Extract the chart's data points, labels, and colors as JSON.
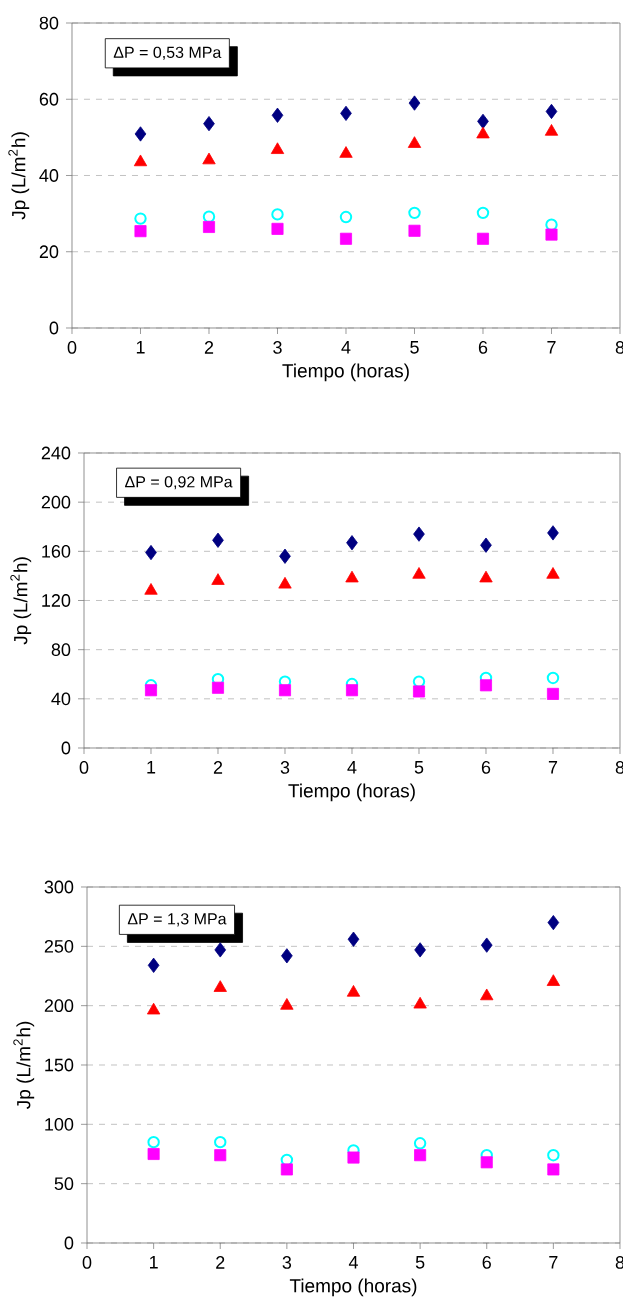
{
  "chart_data": [
    {
      "type": "scatter",
      "xlabel": "Tiempo (horas)",
      "ylabel": "Jp (L/m$^{2}$h)",
      "annotations": [
        "ΔP = 0,53 MPa"
      ],
      "x": [
        1,
        2,
        3,
        4,
        5,
        6,
        7
      ],
      "xlim": [
        0,
        8
      ],
      "xticks": [
        0,
        1,
        2,
        3,
        4,
        5,
        6,
        7,
        8
      ],
      "ylim": [
        0,
        80
      ],
      "yticks": [
        0,
        20,
        40,
        60,
        80
      ],
      "grid": "y",
      "line_style": "dashed",
      "series": [
        {
          "color": "#000080",
          "marker": "diamond",
          "values": [
            50.9,
            53.6,
            55.8,
            56.3,
            59.0,
            54.2,
            56.8
          ]
        },
        {
          "color": "#ff0000",
          "marker": "triangle",
          "values": [
            43.5,
            44.0,
            46.7,
            45.7,
            48.3,
            50.8,
            51.5
          ]
        },
        {
          "color": "#00ffff",
          "marker": "circle",
          "values": [
            28.7,
            29.2,
            29.8,
            29.1,
            30.2,
            30.2,
            27.1
          ]
        },
        {
          "color": "#ff00ff",
          "marker": "square",
          "values": [
            25.4,
            26.5,
            26.0,
            23.4,
            25.5,
            23.4,
            24.5
          ]
        }
      ]
    },
    {
      "type": "scatter",
      "xlabel": "Tiempo (horas)",
      "ylabel": "Jp (L/m$^{2}$h)",
      "annotations": [
        "ΔP = 0,92 MPa"
      ],
      "x": [
        1,
        2,
        3,
        4,
        5,
        6,
        7
      ],
      "xlim": [
        0,
        8
      ],
      "xticks": [
        0,
        1,
        2,
        3,
        4,
        5,
        6,
        7,
        8
      ],
      "ylim": [
        0,
        240
      ],
      "yticks": [
        0,
        40,
        80,
        120,
        160,
        200,
        240
      ],
      "grid": "y",
      "line_style": "dashed",
      "series": [
        {
          "color": "#000080",
          "marker": "diamond",
          "values": [
            159,
            169,
            156,
            167,
            174,
            165,
            175
          ]
        },
        {
          "color": "#ff0000",
          "marker": "triangle",
          "values": [
            128,
            136,
            133,
            138,
            141,
            138,
            141
          ]
        },
        {
          "color": "#00ffff",
          "marker": "circle",
          "values": [
            51,
            56,
            54,
            52,
            54,
            57,
            57
          ]
        },
        {
          "color": "#ff00ff",
          "marker": "square",
          "values": [
            47,
            49,
            47,
            47,
            46,
            51,
            44
          ]
        }
      ]
    },
    {
      "type": "scatter",
      "xlabel": "Tiempo (horas)",
      "ylabel": "Jp (L/m$^{2}$h)",
      "annotations": [
        "ΔP = 1,3 MPa"
      ],
      "x": [
        1,
        2,
        3,
        4,
        5,
        6,
        7
      ],
      "xlim": [
        0,
        8
      ],
      "xticks": [
        0,
        1,
        2,
        3,
        4,
        5,
        6,
        7,
        8
      ],
      "ylim": [
        0,
        300
      ],
      "yticks": [
        0,
        50,
        100,
        150,
        200,
        250,
        300
      ],
      "grid": "y",
      "line_style": "dashed",
      "series": [
        {
          "color": "#000080",
          "marker": "diamond",
          "values": [
            234,
            247,
            242,
            256,
            247,
            251,
            270
          ]
        },
        {
          "color": "#ff0000",
          "marker": "triangle",
          "values": [
            196,
            215,
            200,
            211,
            201,
            208,
            220
          ]
        },
        {
          "color": "#00ffff",
          "marker": "circle",
          "values": [
            85,
            85,
            70,
            78,
            84,
            74,
            74
          ]
        },
        {
          "color": "#ff00ff",
          "marker": "square",
          "values": [
            75,
            74,
            62,
            72,
            74,
            68,
            62
          ]
        }
      ]
    }
  ]
}
